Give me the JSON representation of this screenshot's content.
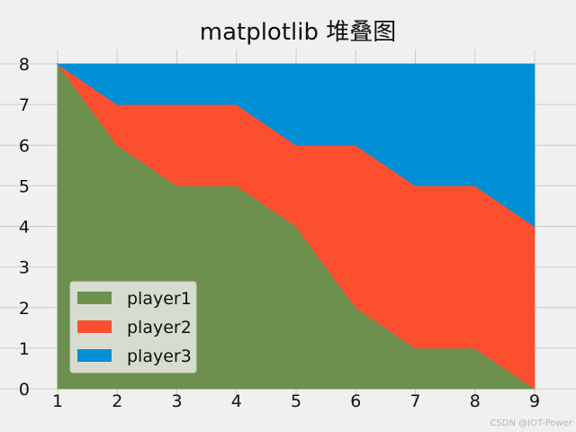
{
  "watermark": "CSDN @IOT-Power",
  "chart_data": {
    "type": "area",
    "stacked": true,
    "title": "matplotlib 堆叠图",
    "xlabel": "",
    "ylabel": "",
    "x": [
      1,
      2,
      3,
      4,
      5,
      6,
      7,
      8,
      9
    ],
    "xlim": [
      1,
      9
    ],
    "ylim": [
      0,
      8
    ],
    "xticks": [
      1,
      2,
      3,
      4,
      5,
      6,
      7,
      8,
      9
    ],
    "yticks": [
      0,
      1,
      2,
      3,
      4,
      5,
      6,
      7,
      8
    ],
    "grid": true,
    "legend_position": "lower-left",
    "series": [
      {
        "name": "player1",
        "color": "#6d904f",
        "values": [
          8,
          6,
          5,
          5,
          4,
          2,
          1,
          1,
          0
        ]
      },
      {
        "name": "player2",
        "color": "#fc4f30",
        "values": [
          0,
          1,
          2,
          2,
          2,
          4,
          4,
          4,
          4
        ]
      },
      {
        "name": "player3",
        "color": "#008fd5",
        "values": [
          0,
          1,
          1,
          1,
          2,
          2,
          3,
          3,
          4
        ]
      }
    ]
  }
}
